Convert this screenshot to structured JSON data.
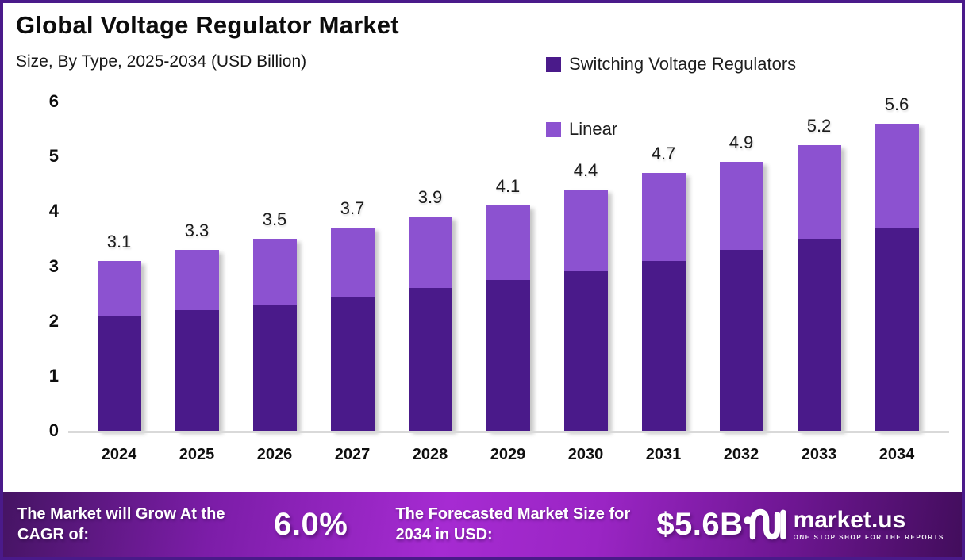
{
  "frame": {
    "border_color": "#4a1a8a",
    "background": "#ffffff"
  },
  "header": {
    "title": "Global Voltage Regulator Market",
    "subtitle": "Size, By Type, 2025-2034 (USD Billion)"
  },
  "legend": [
    {
      "label": "Switching Voltage Regulators",
      "color": "#4a1a8a"
    },
    {
      "label": "Linear",
      "color": "#8c52d0"
    }
  ],
  "chart_data": {
    "type": "bar",
    "stacked": true,
    "title": "Global Voltage Regulator Market Size, By Type, 2025-2034 (USD Billion)",
    "categories": [
      "2024",
      "2025",
      "2026",
      "2027",
      "2028",
      "2029",
      "2030",
      "2031",
      "2032",
      "2033",
      "2034"
    ],
    "series": [
      {
        "name": "Switching Voltage Regulators",
        "color": "#4a1a8a",
        "values": [
          2.1,
          2.2,
          2.3,
          2.45,
          2.6,
          2.75,
          2.9,
          3.1,
          3.3,
          3.5,
          3.7
        ]
      },
      {
        "name": "Linear",
        "color": "#8c52d0",
        "values": [
          1.0,
          1.1,
          1.2,
          1.25,
          1.3,
          1.35,
          1.5,
          1.6,
          1.6,
          1.7,
          1.9
        ]
      }
    ],
    "totals": [
      3.1,
      3.3,
      3.5,
      3.7,
      3.9,
      4.1,
      4.4,
      4.7,
      4.9,
      5.2,
      5.6
    ],
    "total_labels": [
      "3.1",
      "3.3",
      "3.5",
      "3.7",
      "3.9",
      "4.1",
      "4.4",
      "4.7",
      "4.9",
      "5.2",
      "5.6"
    ],
    "yticks": [
      "0",
      "1",
      "2",
      "3",
      "4",
      "5",
      "6"
    ],
    "ylim": [
      0,
      6
    ],
    "xlabel": "",
    "ylabel": "",
    "grid": false,
    "legend_position": "top-right"
  },
  "footer": {
    "cagr_text": "The Market will Grow At the CAGR of:",
    "cagr_value": "6.0%",
    "forecast_text": "The Forecasted Market Size for 2034 in USD:",
    "forecast_value": "$5.6B",
    "brand": {
      "name": "market.us",
      "tagline": "ONE STOP SHOP FOR THE REPORTS"
    }
  }
}
